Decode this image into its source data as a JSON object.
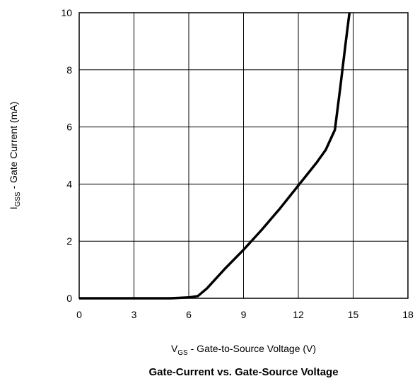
{
  "chart_data": {
    "type": "line",
    "title": "Gate-Current vs. Gate-Source Voltage",
    "xlabel": {
      "main": "V",
      "sub": "GS",
      "rest": " - Gate-to-Source Voltage (V)"
    },
    "ylabel": {
      "main": "I",
      "sub": "GSS",
      "rest": " - Gate Current (mA)"
    },
    "xlim": [
      0,
      18
    ],
    "ylim": [
      0,
      10
    ],
    "xticks": [
      "0",
      "3",
      "6",
      "9",
      "12",
      "15",
      "18"
    ],
    "yticks": [
      "0",
      "2",
      "4",
      "6",
      "8",
      "10"
    ],
    "grid": true,
    "line_color": "#000000",
    "series": [
      {
        "x": [
          0,
          3,
          5,
          6,
          6.5,
          7,
          7.5,
          8,
          9,
          10,
          11,
          12,
          13,
          13.5,
          14,
          14.3,
          14.6,
          14.8
        ],
        "y": [
          0,
          0,
          0,
          0.03,
          0.08,
          0.35,
          0.7,
          1.05,
          1.7,
          2.4,
          3.15,
          3.95,
          4.75,
          5.2,
          5.9,
          7.4,
          9.0,
          10.0
        ]
      }
    ]
  }
}
